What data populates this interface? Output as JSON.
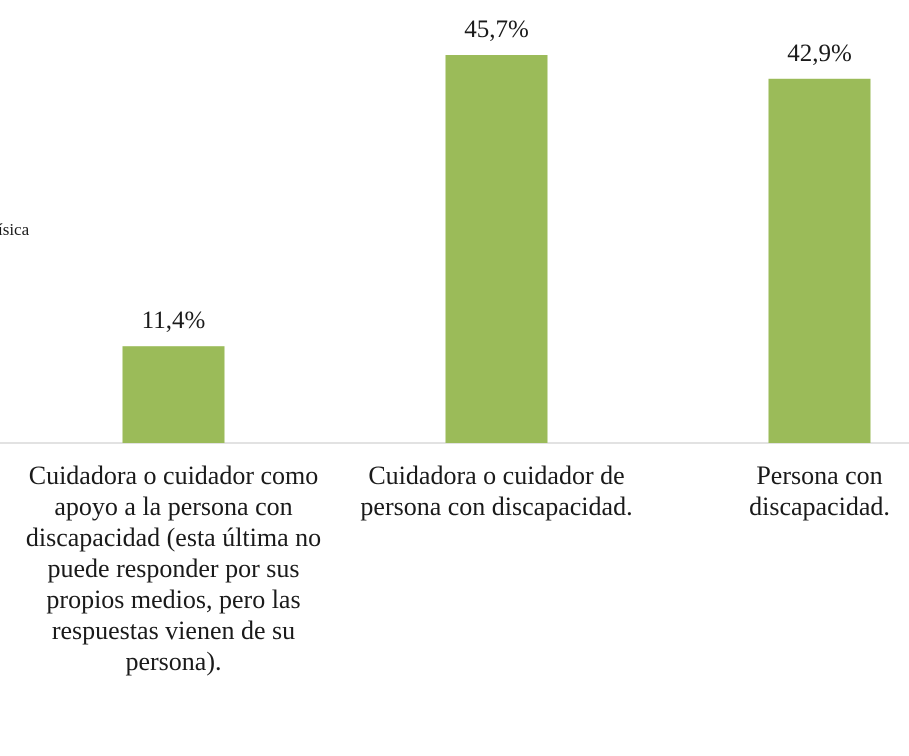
{
  "chart_data": {
    "type": "bar",
    "annotation": "ísica",
    "categories": [
      "Cuidadora o cuidador como apoyo a la persona con discapacidad (esta última no puede responder por sus propios medios, pero las respuestas vienen de su persona).",
      "Cuidadora o cuidador de persona con discapacidad.",
      "Persona con discapacidad."
    ],
    "values": [
      11.4,
      45.7,
      42.9
    ],
    "value_labels": [
      "11,4%",
      "45,7%",
      "42,9%"
    ],
    "color": "#9bbb59"
  }
}
